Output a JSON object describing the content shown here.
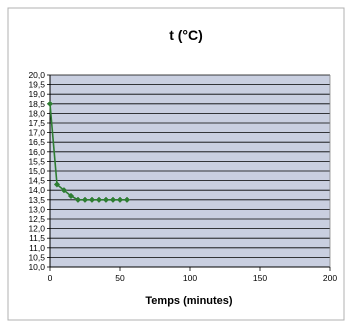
{
  "chart_data": {
    "type": "scatter",
    "title": "t (°C)",
    "xlabel": "Temps (minutes)",
    "ylabel": "",
    "xlim": [
      0,
      200
    ],
    "ylim": [
      10,
      20
    ],
    "x_ticks": [
      0,
      50,
      100,
      150,
      200
    ],
    "x_tick_labels": [
      "0",
      "50",
      "100",
      "150",
      "200"
    ],
    "y_ticks": [
      10,
      10.5,
      11,
      11.5,
      12,
      12.5,
      13,
      13.5,
      14,
      14.5,
      15,
      15.5,
      16,
      16.5,
      17,
      17.5,
      18,
      18.5,
      19,
      19.5,
      20
    ],
    "y_tick_labels": [
      "10,0",
      "10,5",
      "11,0",
      "11,5",
      "12,0",
      "12,5",
      "13,0",
      "13,5",
      "14,0",
      "14,5",
      "15,0",
      "15,5",
      "16,0",
      "16,5",
      "17,0",
      "17,5",
      "18,0",
      "18,5",
      "19,0",
      "19,5",
      "20,0"
    ],
    "grid": true,
    "legend": "none",
    "series": [
      {
        "x": [
          0,
          5,
          10,
          15,
          20,
          25,
          30,
          35,
          40,
          45,
          50,
          55
        ],
        "y": [
          18.5,
          14.3,
          14.0,
          13.7,
          13.5,
          13.5,
          13.5,
          13.5,
          13.5,
          13.5,
          13.5,
          13.5
        ],
        "color": "#2e7d32",
        "marker": "diamond"
      }
    ],
    "colors": {
      "plot_background": "#c9cfe0",
      "gridline": "#000000",
      "frame_border": "#b0b0b0"
    }
  }
}
